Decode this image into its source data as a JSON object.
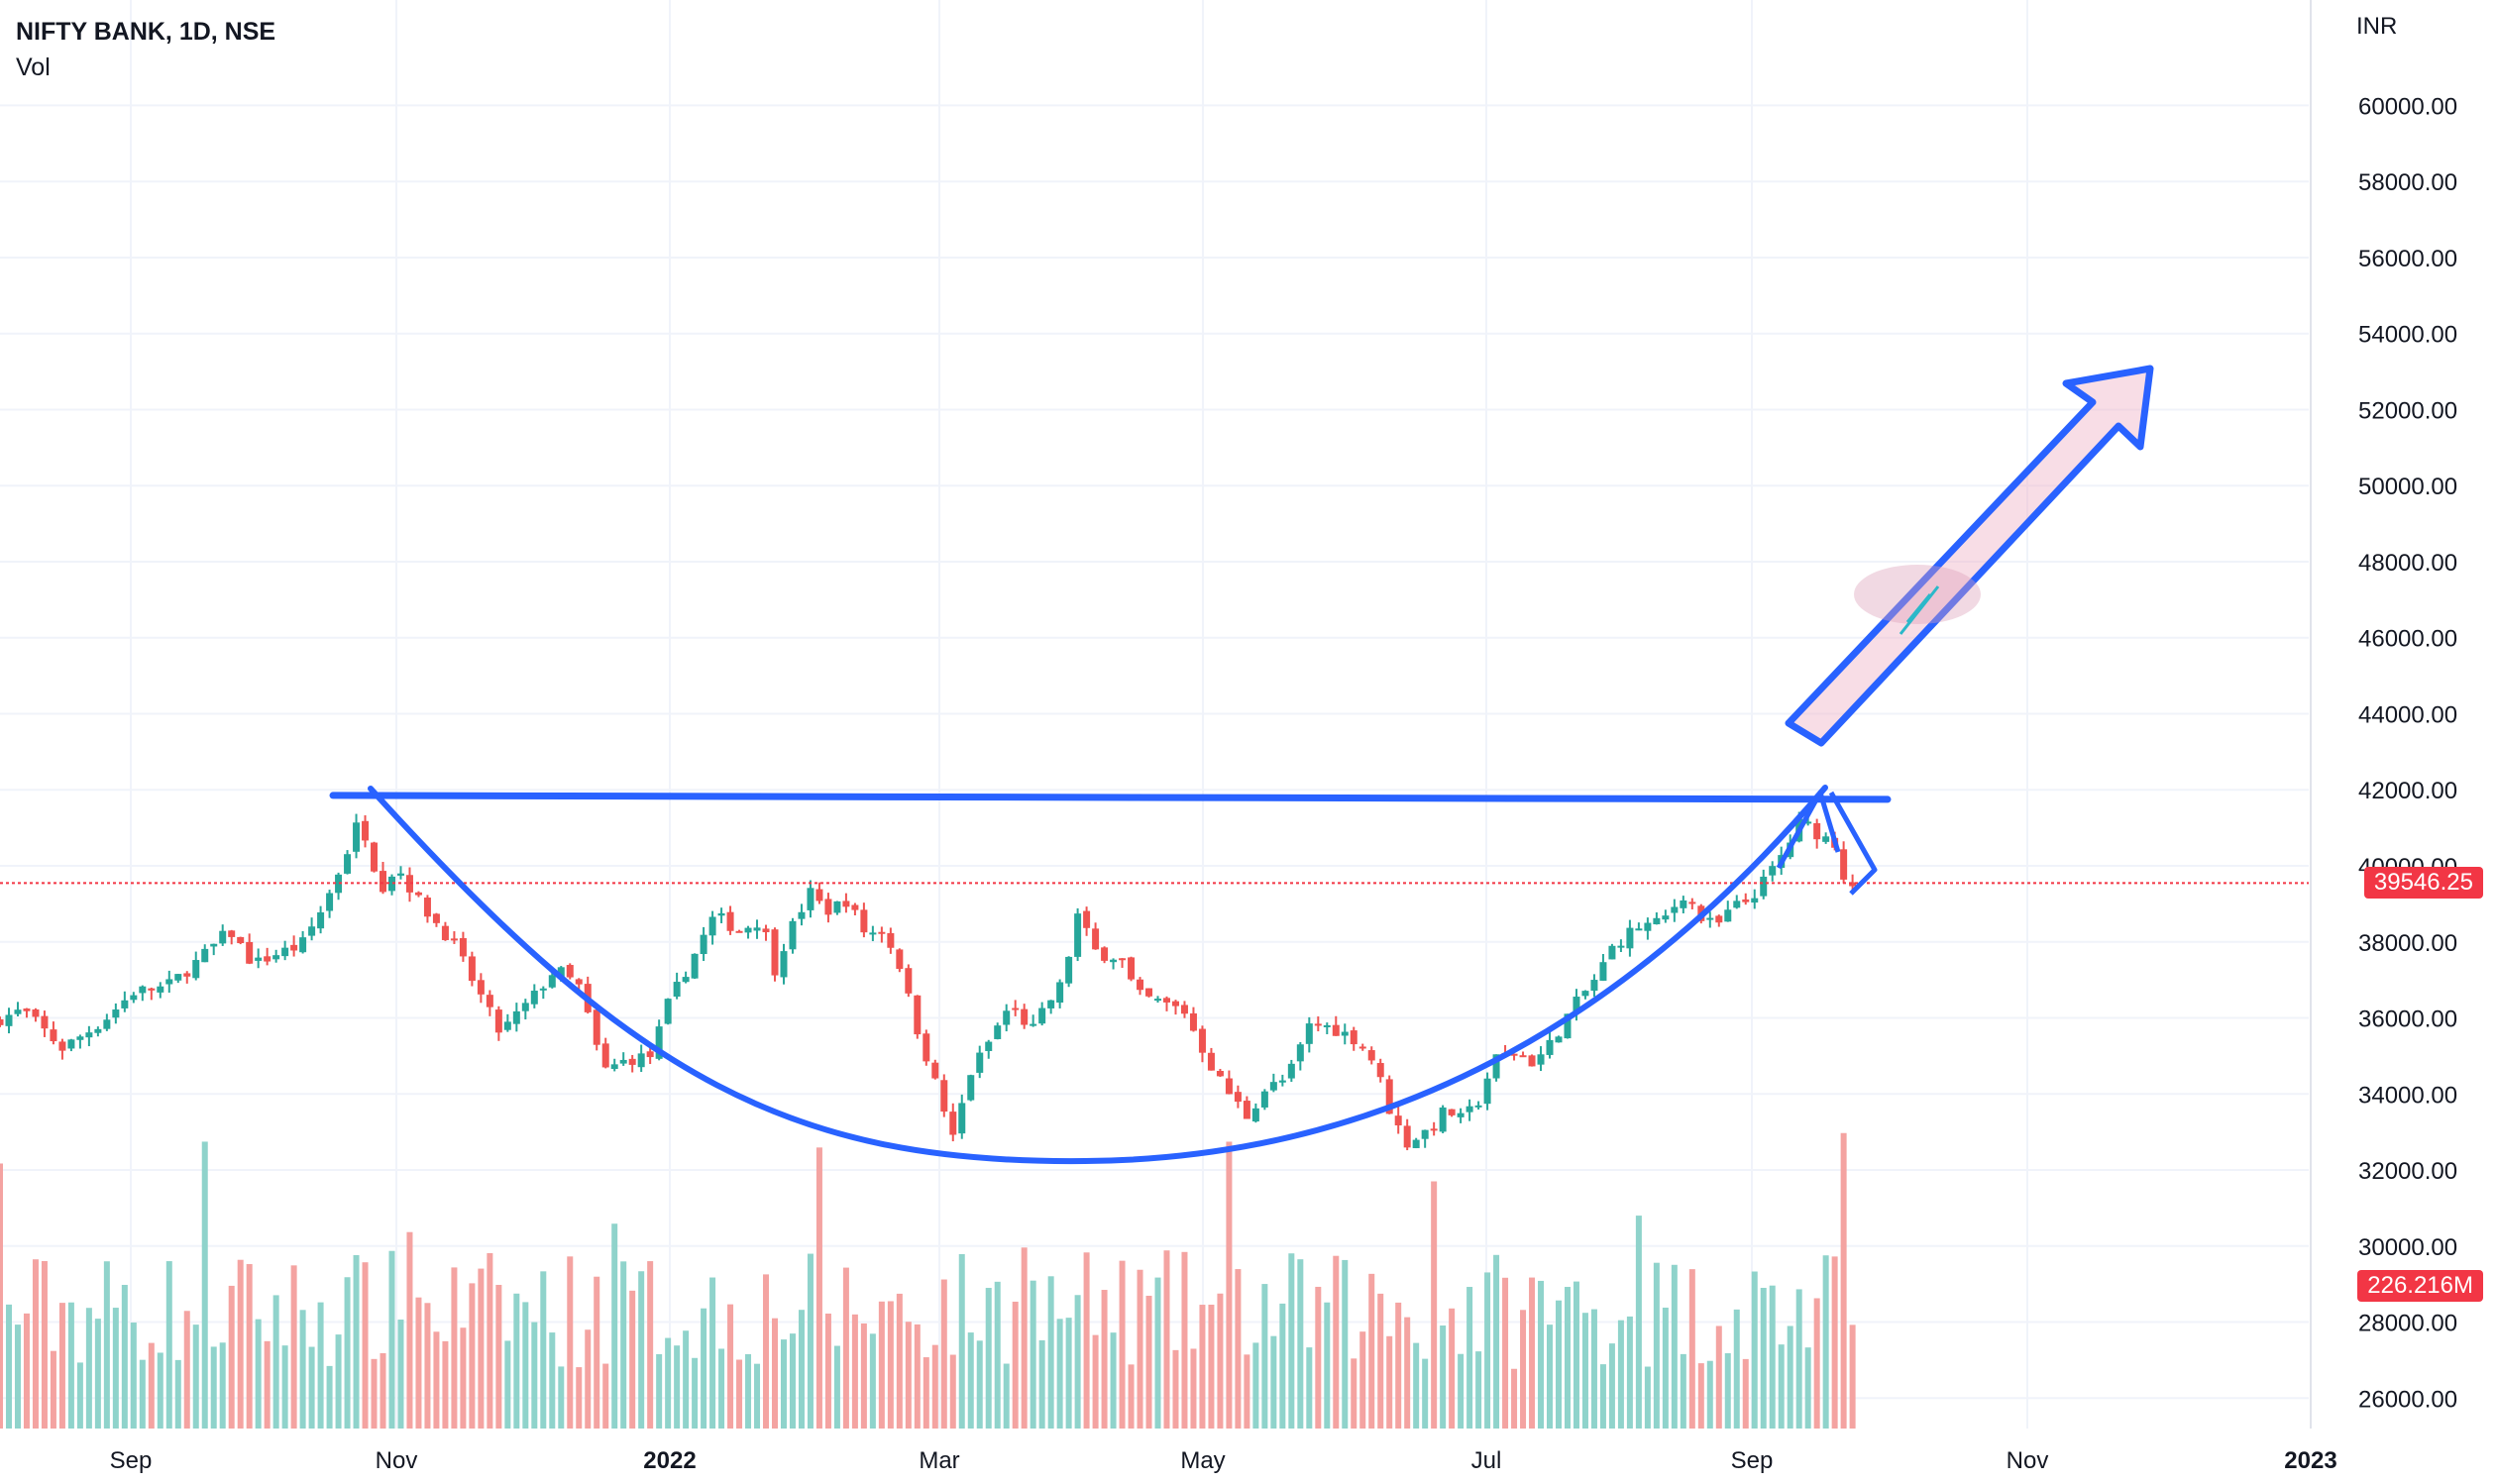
{
  "legend": {
    "title": "NIFTY BANK, 1D, NSE",
    "indicator": "Vol"
  },
  "currency": "INR",
  "last_price_label": "39546.25",
  "last_volume_label": "226.216M",
  "colors": {
    "up": "#26a69a",
    "down": "#ef5350",
    "up_vol": "#8fd3cb",
    "down_vol": "#f4a3a1",
    "drawing": "#2962ff",
    "last": "#f23645"
  },
  "chart_data": {
    "type": "candlestick",
    "title": "NIFTY BANK, 1D, NSE",
    "ylabel": "INR",
    "ylim": [
      25200,
      62200
    ],
    "y_ticks": [
      "26000.00",
      "28000.00",
      "30000.00",
      "32000.00",
      "34000.00",
      "36000.00",
      "38000.00",
      "40000.00",
      "42000.00",
      "44000.00",
      "46000.00",
      "48000.00",
      "50000.00",
      "52000.00",
      "54000.00",
      "56000.00",
      "58000.00",
      "60000.00"
    ],
    "x_ticks": [
      "Sep",
      "Nov",
      "2022",
      "Mar",
      "May",
      "Jul",
      "Sep",
      "Nov",
      "2023"
    ],
    "x_tick_bold": [
      "2022",
      "2023"
    ],
    "last_price": 39546.25,
    "last_volume": "226.216M",
    "price_path": [
      [
        0,
        35900
      ],
      [
        20,
        36200
      ],
      [
        45,
        35200
      ],
      [
        70,
        35900
      ],
      [
        90,
        36700
      ],
      [
        110,
        36800
      ],
      [
        130,
        37500
      ],
      [
        150,
        38300
      ],
      [
        165,
        37400
      ],
      [
        180,
        37700
      ],
      [
        195,
        37900
      ],
      [
        210,
        39000
      ],
      [
        225,
        40500
      ],
      [
        232,
        41300
      ],
      [
        245,
        39400
      ],
      [
        255,
        40000
      ],
      [
        270,
        39000
      ],
      [
        290,
        38000
      ],
      [
        305,
        36800
      ],
      [
        320,
        35600
      ],
      [
        340,
        36500
      ],
      [
        355,
        37300
      ],
      [
        370,
        36800
      ],
      [
        385,
        34600
      ],
      [
        400,
        34900
      ],
      [
        415,
        35000
      ],
      [
        425,
        36300
      ],
      [
        440,
        37500
      ],
      [
        455,
        38700
      ],
      [
        470,
        38300
      ],
      [
        485,
        38600
      ],
      [
        492,
        37200
      ],
      [
        500,
        38100
      ],
      [
        515,
        39300
      ],
      [
        525,
        38800
      ],
      [
        538,
        39100
      ],
      [
        550,
        38200
      ],
      [
        560,
        38300
      ],
      [
        570,
        37600
      ],
      [
        580,
        36000
      ],
      [
        592,
        34500
      ],
      [
        605,
        32800
      ],
      [
        615,
        34500
      ],
      [
        625,
        35200
      ],
      [
        640,
        36300
      ],
      [
        655,
        35700
      ],
      [
        665,
        36400
      ],
      [
        675,
        37000
      ],
      [
        682,
        38800
      ],
      [
        695,
        37700
      ],
      [
        710,
        37600
      ],
      [
        720,
        36600
      ],
      [
        735,
        36400
      ],
      [
        750,
        36200
      ],
      [
        765,
        34900
      ],
      [
        775,
        34200
      ],
      [
        790,
        33400
      ],
      [
        800,
        34100
      ],
      [
        815,
        34400
      ],
      [
        830,
        35900
      ],
      [
        845,
        35700
      ],
      [
        860,
        35400
      ],
      [
        870,
        34800
      ],
      [
        880,
        33500
      ],
      [
        890,
        32700
      ],
      [
        905,
        33100
      ],
      [
        915,
        33600
      ],
      [
        925,
        33300
      ],
      [
        935,
        33800
      ],
      [
        945,
        34900
      ],
      [
        960,
        35100
      ],
      [
        970,
        34800
      ],
      [
        980,
        35300
      ],
      [
        995,
        36300
      ],
      [
        1010,
        37100
      ],
      [
        1020,
        37900
      ],
      [
        1035,
        38400
      ],
      [
        1050,
        38500
      ],
      [
        1065,
        39300
      ],
      [
        1075,
        38600
      ],
      [
        1085,
        38400
      ],
      [
        1095,
        38900
      ],
      [
        1105,
        39100
      ],
      [
        1115,
        39600
      ],
      [
        1128,
        40400
      ],
      [
        1138,
        41200
      ],
      [
        1150,
        40800
      ],
      [
        1160,
        40600
      ],
      [
        1166,
        39546
      ]
    ],
    "volume_ylim": [
      0,
      100
    ],
    "drawings": [
      {
        "type": "resistance_line",
        "level": 41800
      },
      {
        "type": "cup_curve",
        "low": 32000
      },
      {
        "type": "arrow_up",
        "from": 43000,
        "to": 52800
      }
    ]
  }
}
